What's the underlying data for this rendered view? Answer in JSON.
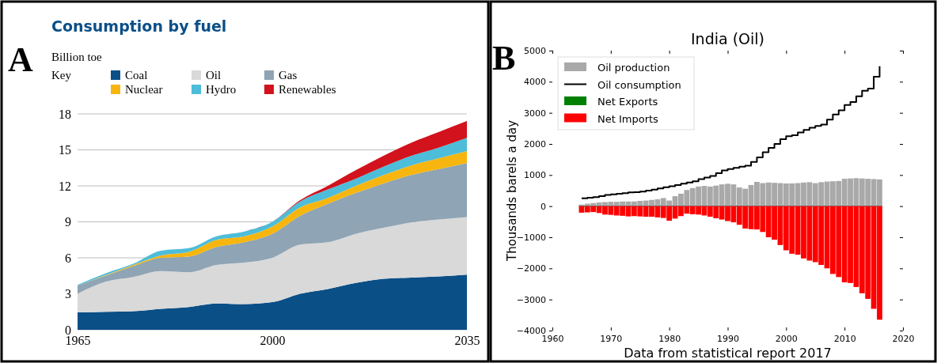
{
  "chart_data": [
    {
      "type": "area",
      "title": "Consumption by fuel",
      "ylabel": "Billion toe",
      "legend_title": "Key",
      "stacked": true,
      "grid": "y",
      "legend": "top",
      "x": [
        1965,
        1970,
        1975,
        1980,
        1985,
        1990,
        1995,
        2000,
        2005,
        2010,
        2015,
        2020,
        2025,
        2030,
        2035
      ],
      "xlim": [
        1965,
        2035
      ],
      "xticks": [
        1965,
        2000,
        2035
      ],
      "ylim": [
        0,
        18
      ],
      "yticks": [
        0,
        3,
        6,
        9,
        12,
        15,
        18
      ],
      "annotations": [
        "A"
      ],
      "series": [
        {
          "name": "Coal",
          "color": "#0b4f87",
          "values": [
            1.45,
            1.5,
            1.55,
            1.75,
            1.9,
            2.2,
            2.15,
            2.3,
            3.0,
            3.4,
            3.9,
            4.25,
            4.35,
            4.45,
            4.6
          ]
        },
        {
          "name": "Oil",
          "color": "#d9d9d9",
          "values": [
            1.55,
            2.5,
            2.85,
            3.15,
            2.9,
            3.2,
            3.45,
            3.7,
            4.1,
            3.9,
            4.1,
            4.25,
            4.6,
            4.75,
            4.8
          ]
        },
        {
          "name": "Gas",
          "color": "#8fa4b4",
          "values": [
            0.7,
            0.5,
            0.9,
            1.1,
            1.3,
            1.5,
            1.7,
            2.0,
            2.4,
            3.2,
            3.4,
            3.7,
            3.95,
            4.2,
            4.5
          ]
        },
        {
          "name": "Nuclear",
          "color": "#f6b60f",
          "values": [
            0,
            0.05,
            0.1,
            0.2,
            0.4,
            0.6,
            0.5,
            0.6,
            0.7,
            0.5,
            0.6,
            0.7,
            0.8,
            0.9,
            1.0
          ]
        },
        {
          "name": "Hydro",
          "color": "#4dbdd9",
          "values": [
            0.05,
            0.15,
            0.1,
            0.4,
            0.3,
            0.3,
            0.4,
            0.4,
            0.5,
            0.7,
            0.6,
            0.7,
            0.8,
            0.9,
            1.1
          ]
        },
        {
          "name": "Renewables",
          "color": "#d2121c",
          "values": [
            0,
            0,
            0,
            0,
            0,
            0,
            0,
            0,
            0.1,
            0.3,
            0.7,
            0.9,
            1.1,
            1.3,
            1.4
          ]
        }
      ]
    },
    {
      "type": "bar",
      "title": "India (Oil)",
      "ylabel": "Thousands barels a day",
      "xlabel": "Data from statistical report 2017",
      "stacked": true,
      "legend": "top left",
      "xlim": [
        1960,
        2020
      ],
      "xticks": [
        1960,
        1970,
        1980,
        1990,
        2000,
        2010,
        2020
      ],
      "ylim": [
        -4000,
        5000
      ],
      "yticks": [
        -4000,
        -3000,
        -2000,
        -1000,
        0,
        1000,
        2000,
        3000,
        4000,
        5000
      ],
      "annotations": [
        "B"
      ],
      "ref_lines": [
        {
          "axis": "y",
          "value": 0,
          "color": "#000000"
        }
      ],
      "x": [
        1965,
        1966,
        1967,
        1968,
        1969,
        1970,
        1971,
        1972,
        1973,
        1974,
        1975,
        1976,
        1977,
        1978,
        1979,
        1980,
        1981,
        1982,
        1983,
        1984,
        1985,
        1986,
        1987,
        1988,
        1989,
        1990,
        1991,
        1992,
        1993,
        1994,
        1995,
        1996,
        1997,
        1998,
        1999,
        2000,
        2001,
        2002,
        2003,
        2004,
        2005,
        2006,
        2007,
        2008,
        2009,
        2010,
        2011,
        2012,
        2013,
        2014,
        2015,
        2016
      ],
      "series": [
        {
          "name": "Oil production",
          "color": "#a9a9a9",
          "values": [
            50,
            80,
            100,
            120,
            130,
            140,
            140,
            150,
            150,
            150,
            170,
            180,
            200,
            220,
            260,
            180,
            320,
            400,
            520,
            580,
            630,
            650,
            630,
            660,
            700,
            720,
            700,
            600,
            560,
            680,
            780,
            740,
            760,
            750,
            740,
            730,
            730,
            740,
            760,
            770,
            740,
            770,
            790,
            800,
            810,
            880,
            890,
            900,
            890,
            880,
            870,
            860
          ]
        },
        {
          "name": "Oil consumption",
          "type": "step",
          "color": "#000000",
          "values": [
            250,
            270,
            290,
            320,
            360,
            380,
            400,
            420,
            440,
            450,
            470,
            500,
            530,
            570,
            610,
            640,
            680,
            720,
            760,
            800,
            870,
            920,
            970,
            1060,
            1150,
            1190,
            1230,
            1270,
            1300,
            1420,
            1570,
            1730,
            1870,
            2000,
            2150,
            2250,
            2280,
            2370,
            2450,
            2520,
            2580,
            2620,
            2780,
            2950,
            3080,
            3250,
            3350,
            3530,
            3710,
            3780,
            4160,
            4500
          ]
        },
        {
          "name": "Net Exports",
          "color": "#008000",
          "values": [
            null,
            null,
            null,
            null,
            null,
            null,
            null,
            null,
            null,
            null,
            null,
            null,
            null,
            null,
            null,
            null,
            null,
            null,
            null,
            null,
            null,
            null,
            null,
            null,
            null,
            null,
            null,
            null,
            null,
            null,
            null,
            null,
            null,
            null,
            null,
            null,
            null,
            null,
            null,
            null,
            null,
            null,
            null,
            null,
            null,
            null,
            null,
            null,
            null,
            null,
            null,
            null
          ]
        },
        {
          "name": "Net Imports",
          "color": "#ff0000",
          "values": [
            -210,
            -200,
            -190,
            -220,
            -270,
            -280,
            -300,
            -310,
            -330,
            -320,
            -330,
            -340,
            -340,
            -360,
            -380,
            -470,
            -400,
            -320,
            -240,
            -260,
            -270,
            -300,
            -340,
            -390,
            -430,
            -480,
            -520,
            -600,
            -720,
            -740,
            -750,
            -830,
            -1000,
            -1080,
            -1250,
            -1420,
            -1530,
            -1560,
            -1680,
            -1750,
            -1800,
            -1890,
            -2000,
            -2180,
            -2280,
            -2450,
            -2470,
            -2600,
            -2800,
            -2980,
            -3300,
            -3650
          ]
        }
      ]
    }
  ]
}
